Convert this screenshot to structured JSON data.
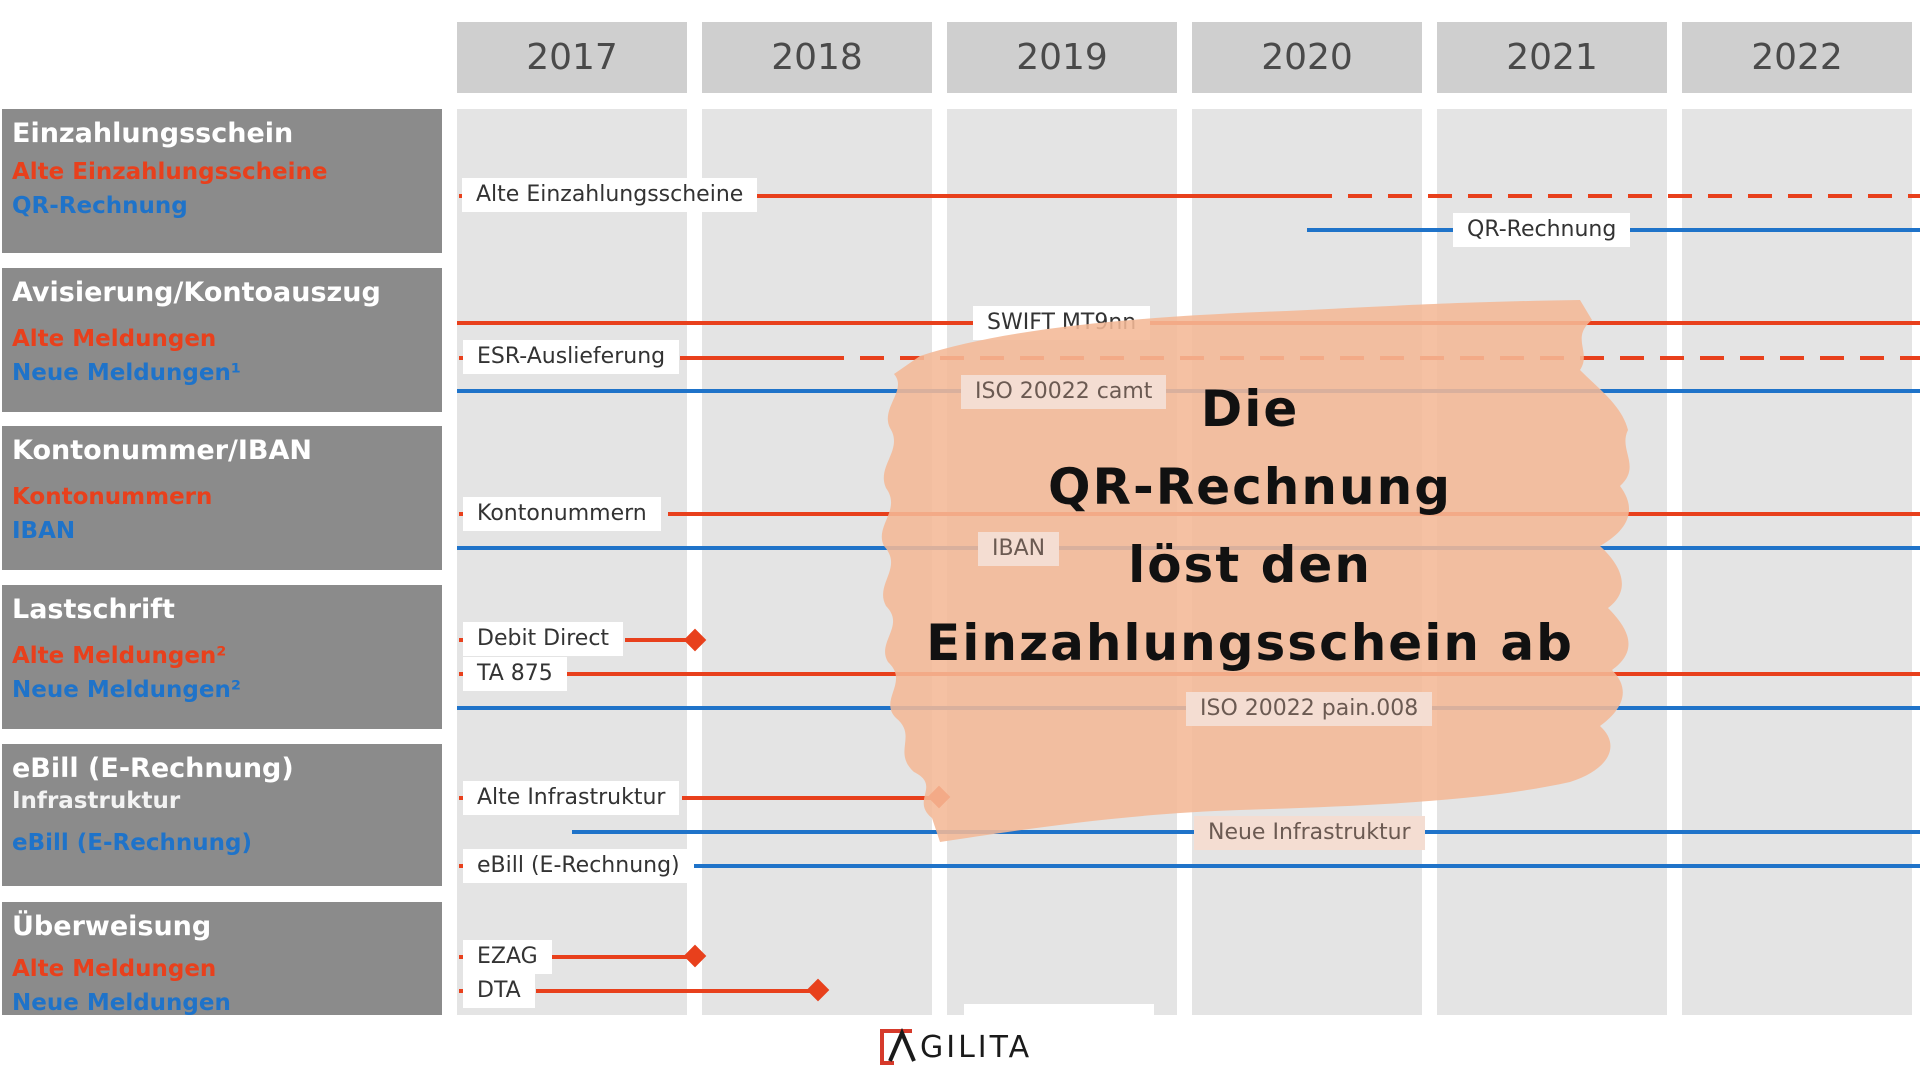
{
  "years": [
    "2017",
    "2018",
    "2019",
    "2020",
    "2021",
    "2022"
  ],
  "sections": [
    {
      "title": "Einzahlungsschein",
      "items": [
        {
          "text": "Alte Einzahlungsscheine",
          "color": "red"
        },
        {
          "text": "QR-Rechnung",
          "color": "blue"
        }
      ]
    },
    {
      "title": "Avisierung/Kontoauszug",
      "items": [
        {
          "text": "Alte Meldungen",
          "color": "red"
        },
        {
          "text": "Neue Meldungen¹",
          "color": "blue"
        }
      ]
    },
    {
      "title": "Kontonummer/IBAN",
      "items": [
        {
          "text": "Kontonummern",
          "color": "red"
        },
        {
          "text": "IBAN",
          "color": "blue"
        }
      ]
    },
    {
      "title": "Lastschrift",
      "items": [
        {
          "text": "Alte Meldungen²",
          "color": "red"
        },
        {
          "text": "Neue Meldungen²",
          "color": "blue"
        }
      ]
    },
    {
      "title": "eBill (E-Rechnung)",
      "subtitle": "Infrastruktur",
      "items": [
        {
          "text": "eBill (E-Rechnung)",
          "color": "blue"
        }
      ]
    },
    {
      "title": "Überweisung",
      "items": [
        {
          "text": "Alte Meldungen",
          "color": "red"
        },
        {
          "text": "Neue Meldungen",
          "color": "blue"
        }
      ]
    }
  ],
  "timeline_labels": {
    "alte_einzahlungsscheine": "Alte Einzahlungsscheine",
    "qr_rechnung": "QR-Rechnung",
    "swift": "SWIFT MT9nn",
    "esr": "ESR-Auslieferung",
    "camt": "ISO 20022 camt",
    "kontonummern": "Kontonummern",
    "iban": "IBAN",
    "debit_direct": "Debit Direct",
    "ta875": "TA 875",
    "pain008": "ISO 20022 pain.008",
    "alte_infra": "Alte Infrastruktur",
    "neue_infra": "Neue Infrastruktur",
    "ebill": "eBill (E-Rechnung)",
    "ezag": "EZAG",
    "dta": "DTA"
  },
  "overlay": {
    "lines": [
      "Die",
      "QR-Rechnung",
      "löst den",
      "Einzahlungsschein ab"
    ],
    "brush_color": "#f4b896"
  },
  "logo": {
    "text": "GILITA",
    "icon": "agilita-logo-icon"
  },
  "colors": {
    "old": "#e8401c",
    "new": "#1f73c9"
  }
}
